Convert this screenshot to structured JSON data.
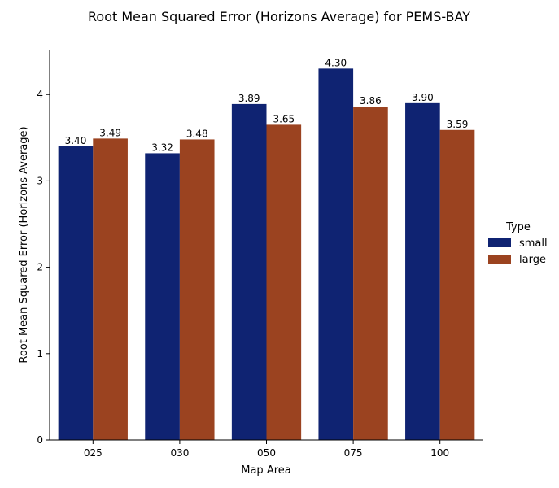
{
  "chart_data": {
    "type": "bar",
    "title": "Root Mean Squared Error (Horizons Average) for PEMS-BAY",
    "xlabel": "Map Area",
    "ylabel": "Root Mean Squared Error (Horizons Average)",
    "categories": [
      "025",
      "030",
      "050",
      "075",
      "100"
    ],
    "series": [
      {
        "name": "small",
        "color": "#0f2372",
        "values": [
          3.4,
          3.32,
          3.89,
          4.3,
          3.9
        ],
        "labels": [
          "3.40",
          "3.32",
          "3.89",
          "4.30",
          "3.90"
        ]
      },
      {
        "name": "large",
        "color": "#9b4320",
        "values": [
          3.49,
          3.48,
          3.65,
          3.86,
          3.59
        ],
        "labels": [
          "3.49",
          "3.48",
          "3.65",
          "3.86",
          "3.59"
        ]
      }
    ],
    "ylim": [
      0,
      4.52
    ],
    "yticks": [
      0,
      1,
      2,
      3,
      4
    ],
    "grid": false,
    "legend": {
      "title": "Type",
      "placement": "right"
    }
  }
}
